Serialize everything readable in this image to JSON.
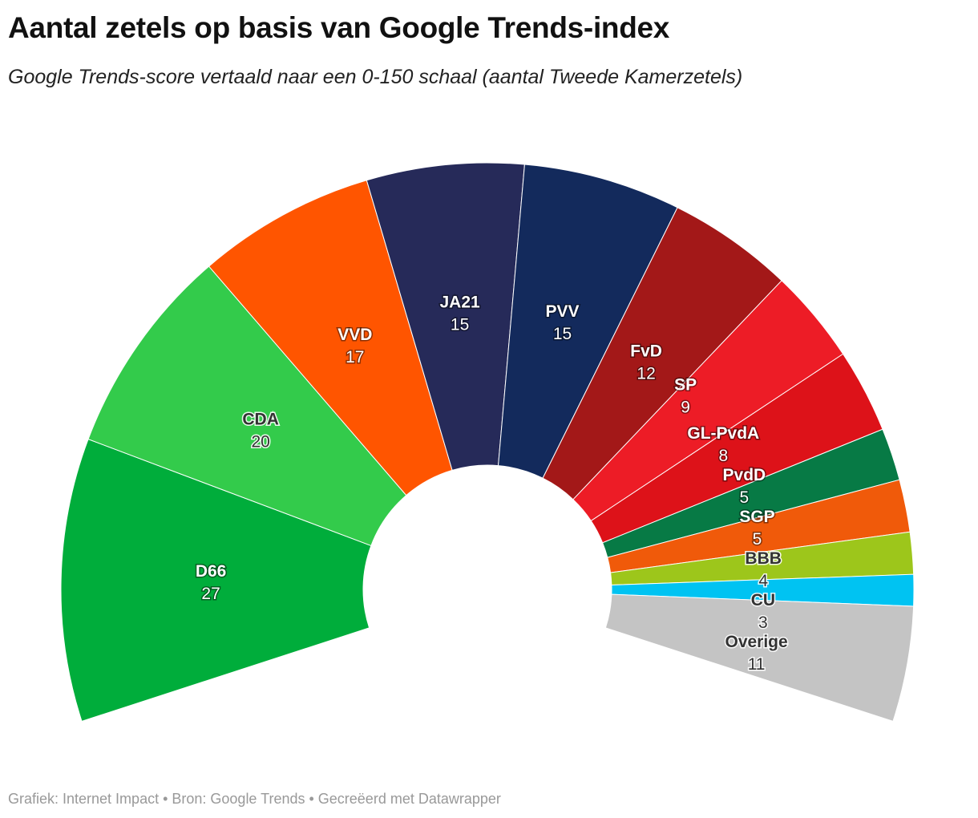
{
  "title": "Aantal zetels op basis van Google Trends-index",
  "subtitle": "Google Trends-score vertaald naar een 0-150 schaal (aantal Tweede Kamerzetels)",
  "footer": "Grafiek: Internet Impact • Bron: Google Trends • Gecreëerd met Datawrapper",
  "chart_data": {
    "type": "pie",
    "variant": "semicircle-donut",
    "categories": [
      "D66",
      "CDA",
      "VVD",
      "JA21",
      "PVV",
      "FvD",
      "SP",
      "GL-PvdA",
      "PvdD",
      "SGP",
      "BBB",
      "CU",
      "Overige"
    ],
    "values": [
      27,
      20,
      17,
      15,
      15,
      12,
      9,
      8,
      5,
      5,
      4,
      3,
      11
    ],
    "colors": [
      "#00ad3b",
      "#33cb4b",
      "#ff5500",
      "#262a59",
      "#132a5c",
      "#a31818",
      "#ed1c26",
      "#dd1219",
      "#077a45",
      "#f05a0a",
      "#9dc61b",
      "#00c3f2",
      "#c4c4c4"
    ],
    "label_colors": [
      "#ffffff",
      "#333333",
      "#ffffff",
      "#ffffff",
      "#ffffff",
      "#ffffff",
      "#ffffff",
      "#ffffff",
      "#ffffff",
      "#ffffff",
      "#333333",
      "#333333",
      "#333333"
    ]
  }
}
